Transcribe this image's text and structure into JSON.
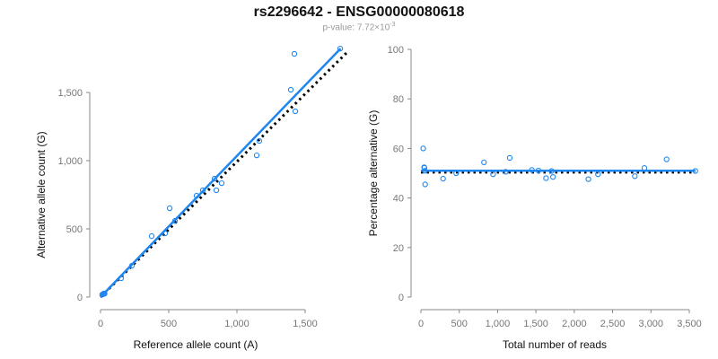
{
  "title": "rs2296642 - ENSG00000080618",
  "subtitle": {
    "prefix": "p-value: 7.72×10",
    "exponent": "-3"
  },
  "colors": {
    "points": "#1f86f0",
    "fit": "#1f86f0",
    "expected": "#000000",
    "axis": "#888888"
  },
  "chart_data": [
    {
      "type": "scatter",
      "xlabel": "Reference allele count (A)",
      "ylabel": "Alternative allele count (G)",
      "xlim": [
        0,
        1800
      ],
      "ylim": [
        0,
        1820
      ],
      "xticks": [
        0,
        500,
        1000,
        1500
      ],
      "xtick_labels": [
        "0",
        "500",
        "1,000",
        "1,500"
      ],
      "yticks": [
        0,
        500,
        1000,
        1500
      ],
      "ytick_labels": [
        "0",
        "500",
        "1,000",
        "1,500"
      ],
      "points": [
        [
          12,
          18
        ],
        [
          20,
          22
        ],
        [
          22,
          24
        ],
        [
          25,
          26
        ],
        [
          30,
          25
        ],
        [
          151,
          138
        ],
        [
          230,
          230
        ],
        [
          375,
          447
        ],
        [
          474,
          467
        ],
        [
          507,
          651
        ],
        [
          546,
          559
        ],
        [
          704,
          743
        ],
        [
          750,
          783
        ],
        [
          836,
          868
        ],
        [
          849,
          783
        ],
        [
          888,
          835
        ],
        [
          1145,
          1039
        ],
        [
          1164,
          1145
        ],
        [
          1395,
          1520
        ],
        [
          1428,
          1362
        ],
        [
          1421,
          1783
        ],
        [
          1757,
          1822
        ]
      ],
      "fit_line": [
        [
          0,
          0
        ],
        [
          1760,
          1822
        ]
      ],
      "expected_line": [
        [
          0,
          0
        ],
        [
          1816,
          1803
        ]
      ]
    },
    {
      "type": "scatter",
      "xlabel": "Total number of reads",
      "ylabel": "Percentage alternative (G)",
      "xlim": [
        0,
        3500
      ],
      "ylim": [
        0,
        100
      ],
      "xticks": [
        0,
        500,
        1000,
        1500,
        2000,
        2500,
        3000,
        3500
      ],
      "xtick_labels": [
        "0",
        "500",
        "1,000",
        "1,500",
        "2,000",
        "2,500",
        "3,000",
        "3,500"
      ],
      "yticks": [
        0,
        20,
        40,
        60,
        80,
        100
      ],
      "ytick_labels": [
        "0",
        "20",
        "40",
        "60",
        "80",
        "100"
      ],
      "points": [
        [
          30,
          60
        ],
        [
          42,
          52.4
        ],
        [
          46,
          52.2
        ],
        [
          51,
          51
        ],
        [
          55,
          45.5
        ],
        [
          289,
          47.8
        ],
        [
          460,
          50
        ],
        [
          822,
          54.4
        ],
        [
          941,
          49.6
        ],
        [
          1158,
          56.2
        ],
        [
          1105,
          50.6
        ],
        [
          1447,
          51.3
        ],
        [
          1533,
          51.1
        ],
        [
          1704,
          50.9
        ],
        [
          1632,
          48
        ],
        [
          1723,
          48.5
        ],
        [
          2184,
          47.6
        ],
        [
          2309,
          49.6
        ],
        [
          2915,
          52.1
        ],
        [
          2790,
          48.8
        ],
        [
          3204,
          55.6
        ],
        [
          3579,
          50.9
        ]
      ],
      "fit_line": [
        [
          0,
          51
        ],
        [
          3579,
          51
        ]
      ],
      "expected_line": [
        [
          0,
          50.4
        ],
        [
          3579,
          50.4
        ]
      ]
    }
  ]
}
